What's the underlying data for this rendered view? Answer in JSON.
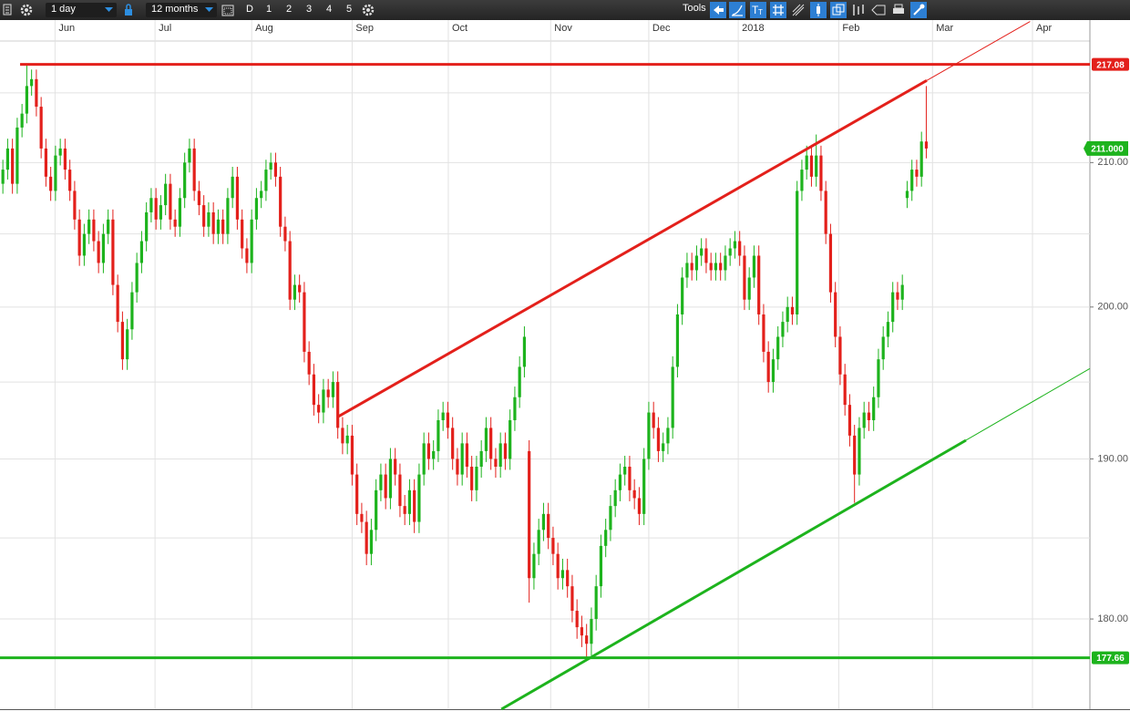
{
  "toolbar": {
    "interval": "1 day",
    "range": "12 months",
    "buttons": [
      "D",
      "1",
      "2",
      "3",
      "4",
      "5"
    ],
    "tools": "Tools"
  },
  "chart_data": {
    "type": "candlestick",
    "log": true,
    "grid": true,
    "up_color": "#1db31d",
    "down_color": "#e3201b",
    "xlim": [
      -0.6,
      227.2
    ],
    "ylim": [
      174.6,
      218.8
    ],
    "xticks": [
      {
        "value": 10.9,
        "label": "Jun"
      },
      {
        "value": 31.8,
        "label": "Jul"
      },
      {
        "value": 52,
        "label": "Aug"
      },
      {
        "value": 73,
        "label": "Sep"
      },
      {
        "value": 93.1,
        "label": "Oct"
      },
      {
        "value": 114.5,
        "label": "Nov"
      },
      {
        "value": 135,
        "label": "Dec"
      },
      {
        "value": 153.7,
        "label": "2018"
      },
      {
        "value": 174.7,
        "label": "Feb"
      },
      {
        "value": 194.3,
        "label": "Mar"
      },
      {
        "value": 215.2,
        "label": "Apr"
      }
    ],
    "yticks": [
      {
        "value": 180,
        "label": "180.00"
      },
      {
        "value": 190,
        "label": "190.00"
      },
      {
        "value": 200,
        "label": "200.00"
      },
      {
        "value": 210,
        "label": "210.00"
      }
    ],
    "y_minor_grid": [
      185,
      195,
      205,
      215
    ],
    "x": [
      0,
      1,
      2,
      3,
      4,
      5,
      6,
      7,
      8,
      9,
      10,
      11,
      12,
      13,
      14,
      15,
      16,
      17,
      18,
      19,
      20,
      21,
      22,
      23,
      24,
      25,
      26,
      27,
      28,
      29,
      30,
      31,
      32,
      33,
      34,
      35,
      36,
      37,
      38,
      39,
      40,
      41,
      42,
      43,
      44,
      45,
      46,
      47,
      48,
      49,
      50,
      51,
      52,
      53,
      54,
      55,
      56,
      57,
      58,
      59,
      60,
      61,
      62,
      63,
      64,
      65,
      66,
      67,
      68,
      69,
      70,
      71,
      72,
      73,
      74,
      75,
      76,
      77,
      78,
      79,
      80,
      81,
      82,
      83,
      84,
      85,
      86,
      87,
      88,
      89,
      90,
      91,
      92,
      93,
      94,
      95,
      96,
      97,
      98,
      99,
      100,
      101,
      102,
      103,
      104,
      105,
      106,
      107,
      108,
      109,
      110,
      111,
      112,
      113,
      114,
      115,
      116,
      117,
      118,
      119,
      120,
      121,
      122,
      123,
      124,
      125,
      126,
      127,
      128,
      129,
      130,
      131,
      132,
      133,
      134,
      135,
      136,
      137,
      138,
      139,
      140,
      141,
      142,
      143,
      144,
      145,
      146,
      147,
      148,
      149,
      150,
      151,
      152,
      153,
      154,
      155,
      156,
      157,
      158,
      159,
      160,
      161,
      162,
      163,
      164,
      165,
      166,
      167,
      168,
      169,
      170,
      171,
      172,
      173,
      174,
      175,
      176,
      177,
      178,
      179,
      180,
      181,
      182,
      183,
      184,
      185,
      186,
      187,
      188,
      189,
      190,
      191,
      192,
      193
    ],
    "open": [
      208.5,
      209.5,
      211,
      208.5,
      212.5,
      213.5,
      215.5,
      216,
      214,
      211,
      209,
      208,
      210.5,
      211,
      209.5,
      208,
      206,
      203.5,
      205,
      206,
      204.5,
      203,
      205,
      206,
      201.5,
      199,
      196.5,
      198.5,
      201,
      203,
      204.5,
      206.5,
      207.5,
      206,
      207,
      208.5,
      206,
      205.5,
      207.5,
      210,
      211,
      208,
      207,
      205.5,
      206.5,
      205,
      206,
      205,
      207.5,
      209,
      206,
      204,
      203,
      206,
      207.5,
      208,
      209.5,
      210,
      209,
      205.5,
      204.5,
      200.5,
      201.5,
      201,
      197,
      195.5,
      193.5,
      193,
      194.5,
      194,
      195,
      192,
      191,
      191.5,
      189,
      186.5,
      186,
      184,
      185.5,
      188,
      189,
      187.5,
      190,
      189,
      187,
      186.5,
      188,
      186,
      189,
      191,
      190,
      190.5,
      192.5,
      193,
      192,
      190,
      189,
      191,
      189.5,
      188,
      189.5,
      190.5,
      192,
      190,
      189.5,
      191,
      190,
      192.5,
      194,
      196,
      190.5,
      182.5,
      184,
      185.5,
      186.5,
      185,
      184,
      182.5,
      183,
      182,
      180.5,
      179.5,
      179,
      178.5,
      180,
      182,
      184.5,
      185.5,
      187,
      188,
      189,
      189.5,
      188,
      187.5,
      186.5,
      190,
      193,
      192,
      190.5,
      191,
      192,
      196,
      199.5,
      202,
      203,
      202.5,
      203.5,
      204,
      203,
      202.5,
      203,
      202.5,
      203.5,
      204,
      204.5,
      203.5,
      200.5,
      202,
      203.5,
      199.5,
      197,
      195,
      196.5,
      198,
      199,
      200,
      199.5,
      208,
      209.5,
      210.5,
      209,
      210.5,
      208,
      205,
      201,
      198,
      195.5,
      193.5,
      191.5,
      189,
      192,
      193,
      192.5,
      194,
      196.5,
      198,
      199,
      201,
      200.5,
      207.5,
      208,
      209.5,
      209,
      211.5
    ],
    "high": [
      210.2,
      211.7,
      211.7,
      213.2,
      214.2,
      217.08,
      216.7,
      216.7,
      214.7,
      211.7,
      209.7,
      211.2,
      211.7,
      211.7,
      210.2,
      208.7,
      206.7,
      205.7,
      206.7,
      206.7,
      205.2,
      205.7,
      206.7,
      206.7,
      202.2,
      199.7,
      199.2,
      201.7,
      203.7,
      205.2,
      207.2,
      208.2,
      208.2,
      207.7,
      209.2,
      209.2,
      206.7,
      208.2,
      210.7,
      211.7,
      211.7,
      208.7,
      207.7,
      207.2,
      207.2,
      206.7,
      206.7,
      208.2,
      209.7,
      209.7,
      206.7,
      204.7,
      206.7,
      208.2,
      208.7,
      210.2,
      210.7,
      210.7,
      209.7,
      206.2,
      205.2,
      202.2,
      202.2,
      201.7,
      197.7,
      196.2,
      194.2,
      195.2,
      195.2,
      195.7,
      195.7,
      192.7,
      192.2,
      192.2,
      189.7,
      187.2,
      186.7,
      186.2,
      188.7,
      189.7,
      189.7,
      190.7,
      190.7,
      189.7,
      187.7,
      188.7,
      188.7,
      189.7,
      191.7,
      191.7,
      191.2,
      193.2,
      193.7,
      193.7,
      192.7,
      190.7,
      191.7,
      191.7,
      190.2,
      190.2,
      191.2,
      192.7,
      192.7,
      190.7,
      191.7,
      191.7,
      193.2,
      194.7,
      196.7,
      198.7,
      191.2,
      184.7,
      186.2,
      187.2,
      187.2,
      185.7,
      184.7,
      183.7,
      183.7,
      182.7,
      181.2,
      180.2,
      179.7,
      180.7,
      182.7,
      185.2,
      186.2,
      187.7,
      188.7,
      189.7,
      190.2,
      190.2,
      188.7,
      188.2,
      190.7,
      193.7,
      193.7,
      192.7,
      191.7,
      192.7,
      196.7,
      200.2,
      202.7,
      203.7,
      203.7,
      204.2,
      204.7,
      204.7,
      203.7,
      203.7,
      203.7,
      204.2,
      204.7,
      205.2,
      205.2,
      204.2,
      202.7,
      204.2,
      204.2,
      200.2,
      197.7,
      197.2,
      198.7,
      199.7,
      200.7,
      200.7,
      208.7,
      210.2,
      211.2,
      211.2,
      212,
      211.2,
      208.7,
      205.7,
      201.7,
      198.7,
      196.2,
      194.2,
      192.2,
      192.7,
      193.7,
      193.7,
      194.7,
      197.2,
      198.7,
      199.7,
      201.7,
      201.7,
      202.2,
      208.7,
      210.2,
      210.2,
      212.2,
      215.5
    ],
    "low": [
      207.8,
      208.8,
      207.8,
      207.8,
      211.8,
      212.8,
      214.8,
      213.3,
      210.3,
      208.3,
      207.3,
      207.3,
      209.8,
      208.8,
      207.3,
      205.3,
      202.8,
      202.8,
      204.3,
      203.8,
      202.3,
      202.3,
      204.3,
      200.8,
      198.3,
      195.8,
      195.8,
      197.8,
      200.3,
      202.3,
      203.8,
      205.8,
      205.3,
      205.3,
      206.3,
      205.3,
      204.8,
      204.8,
      206.8,
      209.3,
      207.3,
      206.3,
      204.8,
      204.8,
      204.3,
      204.3,
      204.3,
      204.3,
      206.8,
      205.3,
      203.3,
      202.3,
      202.3,
      205.3,
      206.8,
      207.3,
      208.8,
      208.3,
      204.8,
      203.8,
      199.8,
      199.8,
      200.3,
      196.3,
      194.8,
      192.8,
      192.3,
      192.3,
      193.3,
      193.3,
      191.3,
      190.3,
      190.3,
      188.3,
      185.8,
      185.3,
      183.3,
      183.3,
      184.8,
      187.3,
      186.8,
      186.8,
      188.3,
      186.3,
      185.8,
      185.8,
      185.3,
      185.3,
      188.3,
      189.3,
      189.3,
      189.8,
      191.8,
      191.3,
      189.3,
      188.3,
      188.3,
      188.8,
      187.3,
      187.3,
      188.8,
      189.8,
      189.3,
      188.8,
      188.8,
      189.3,
      189.3,
      191.8,
      193.3,
      195.3,
      181,
      181.8,
      183.3,
      184.8,
      184.3,
      183.3,
      181.8,
      181.8,
      181.3,
      179.8,
      178.8,
      178.3,
      177.66,
      177.8,
      179.3,
      181.3,
      183.8,
      184.8,
      186.3,
      187.3,
      188.3,
      187.3,
      186.8,
      185.8,
      185.8,
      189.3,
      191.3,
      189.8,
      189.8,
      190.3,
      191.3,
      195.3,
      198.8,
      201.3,
      201.8,
      201.8,
      202.8,
      202.3,
      201.8,
      201.8,
      201.8,
      201.8,
      202.8,
      203.3,
      202.8,
      199.8,
      199.8,
      201.3,
      198.8,
      196.3,
      194.3,
      194.3,
      195.8,
      197.3,
      198.3,
      198.8,
      198.8,
      207.3,
      208.8,
      208.3,
      208.3,
      207.3,
      204.3,
      200.3,
      197.3,
      194.8,
      192.8,
      190.8,
      187.2,
      188.3,
      191.3,
      191.8,
      191.8,
      193.3,
      195.8,
      197.3,
      198.3,
      199.8,
      199.8,
      206.8,
      207.3,
      208.3,
      208.3,
      210.3
    ],
    "close": [
      209.5,
      211,
      208.5,
      212.5,
      213.5,
      215.5,
      216,
      214,
      211,
      209,
      208,
      210.5,
      211,
      209.5,
      208,
      206,
      203.5,
      205,
      206,
      204.5,
      203,
      205,
      206,
      201.5,
      199,
      196.5,
      198.5,
      201,
      203,
      204.5,
      206.5,
      207.5,
      206,
      207,
      208.5,
      206,
      205.5,
      207.5,
      210,
      211,
      208,
      207,
      205.5,
      206.5,
      205,
      206,
      205,
      207.5,
      209,
      206,
      204,
      203,
      206,
      207.5,
      208,
      209.5,
      210,
      209,
      205.5,
      204.5,
      200.5,
      201.5,
      201,
      197,
      195.5,
      193.5,
      193,
      194.5,
      194,
      195,
      192,
      191,
      191.5,
      189,
      186.5,
      186,
      184,
      185.5,
      188,
      189,
      187.5,
      190,
      189,
      187,
      186.5,
      188,
      186,
      189,
      191,
      190,
      190.5,
      192.5,
      193,
      192,
      190,
      189,
      191,
      189.5,
      188,
      189.5,
      190.5,
      192,
      190,
      189.5,
      191,
      190,
      192.5,
      194,
      196,
      198,
      182.5,
      184,
      185.5,
      186.5,
      185,
      184,
      182.5,
      183,
      182,
      180.5,
      179.5,
      179,
      178.5,
      180,
      182,
      184.5,
      185.5,
      187,
      188,
      189,
      189.5,
      188,
      187.5,
      186.5,
      190,
      193,
      192,
      190.5,
      191,
      192,
      196,
      199.5,
      202,
      203,
      202.5,
      203.5,
      204,
      203,
      202.5,
      203,
      202.5,
      203.5,
      204,
      204.5,
      203.5,
      200.5,
      202,
      203.5,
      199.5,
      197,
      195,
      196.5,
      198,
      199,
      200,
      199.5,
      208,
      209.5,
      210.5,
      209,
      210.5,
      208,
      205,
      201,
      198,
      195.5,
      193.5,
      191.5,
      189,
      192,
      193,
      192.5,
      194,
      196.5,
      198,
      199,
      201,
      200.5,
      201.5,
      208,
      209.5,
      209,
      211.5,
      211
    ],
    "hlines": [
      {
        "value": 217.08,
        "label": "217.08",
        "color": "#e3201b",
        "from": 3.6
      },
      {
        "value": 177.66,
        "label": "177.66",
        "color": "#1db31d",
        "from": -0.6
      }
    ],
    "trendlines": [
      {
        "color": "#e3201b",
        "start": [
          69.9,
          192.7
        ],
        "end": [
          193.1,
          215.9
        ],
        "extend_to": 214.7
      },
      {
        "color": "#1db31d",
        "start": [
          104.2,
          174.6
        ],
        "end": [
          201.3,
          191.2
        ],
        "extend_to": 227.2
      }
    ],
    "last_price": {
      "value": 211,
      "label": "211.000",
      "color": "#1db31d"
    }
  }
}
